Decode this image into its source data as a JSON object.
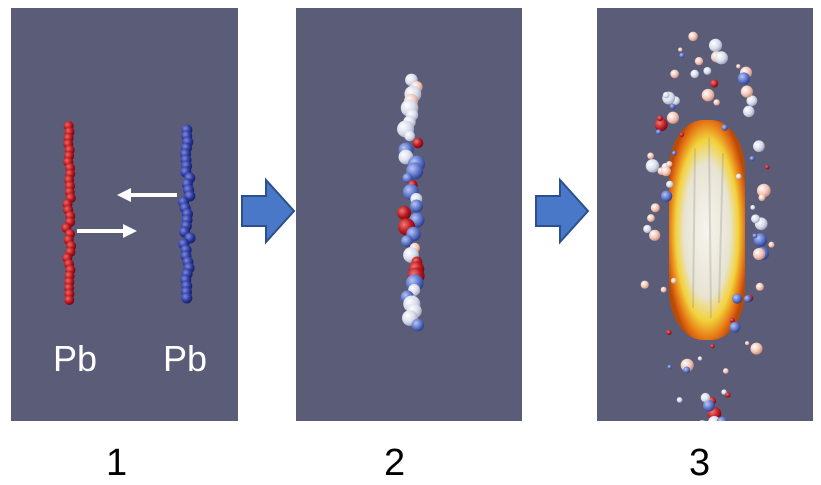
{
  "panels": [
    {
      "step": "1",
      "labels": {
        "left": "Pb",
        "right": "Pb"
      },
      "description_colors": {
        "left_nucleus": "#b8141e",
        "right_nucleus": "#2c3a9e",
        "collision_arrows": "#ffffff"
      }
    },
    {
      "step": "2"
    },
    {
      "step": "3"
    }
  ],
  "colors": {
    "panel_background": "#5a5c78",
    "transition_arrow": "#4a78c8",
    "transition_arrow_outline": "#2c4f8e",
    "fireball_core": "#f4f1e4",
    "fireball_mid": "#f2d23a",
    "fireball_edge": "#e36a10"
  },
  "icons": {
    "transition": "right-arrow-icon"
  }
}
